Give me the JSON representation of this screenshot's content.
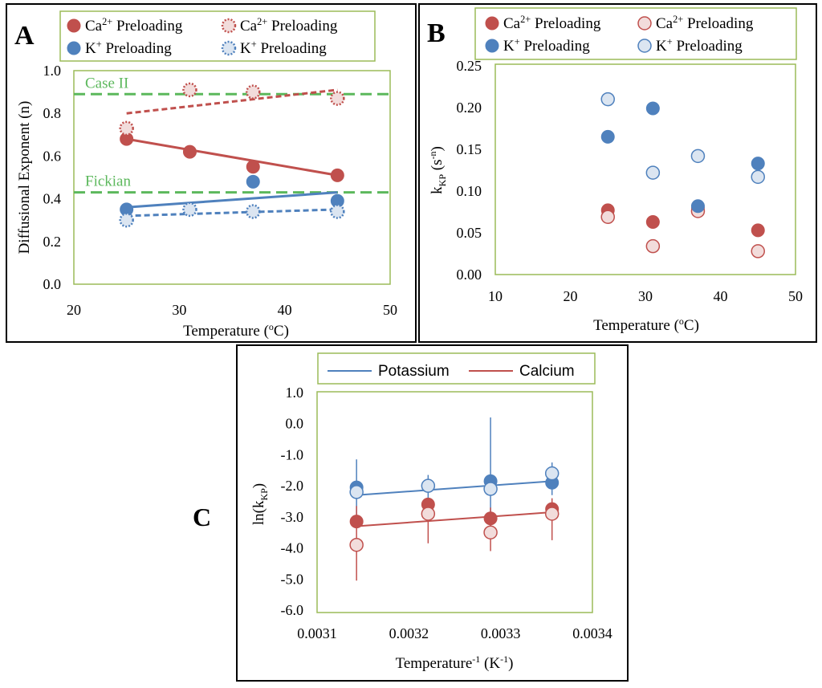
{
  "colors": {
    "calcium": "#c0504d",
    "calcium_light": "#f2dcdb",
    "potassium": "#4f81bd",
    "potassium_light": "#dbe5f1",
    "frame_green": "#9bbb59",
    "threshold_green": "#5cb85c"
  },
  "chart_data": [
    {
      "panel": "A",
      "type": "scatter",
      "xlabel": "Temperature (",
      "xlabel_sup": "o",
      "xlabel_end": "C)",
      "ylabel": "Diffusional Exponent (n)",
      "xlim": [
        20,
        50
      ],
      "ylim": [
        0.0,
        1.0
      ],
      "xticks": [
        "20",
        "30",
        "40",
        "50"
      ],
      "yticks": [
        "0.0",
        "0.2",
        "0.4",
        "0.6",
        "0.8",
        "1.0"
      ],
      "legend": [
        {
          "pre": "Ca",
          "sup": "2+",
          "post": " Preloading",
          "style": "solid"
        },
        {
          "pre": "Ca",
          "sup": "2+",
          "post": " Preloading",
          "style": "dotted"
        },
        {
          "pre": "K",
          "sup": "+",
          "post": " Preloading",
          "style": "solid"
        },
        {
          "pre": "K",
          "sup": "+",
          "post": " Preloading",
          "style": "dotted"
        }
      ],
      "thresholds": [
        {
          "label": "Case II",
          "value": 0.89
        },
        {
          "label": "Fickian",
          "value": 0.43
        }
      ],
      "series": [
        {
          "name": "Ca2+ Preloading (filled)",
          "ion": "calcium",
          "style": "solid",
          "x": [
            25,
            31,
            37,
            45
          ],
          "y": [
            0.68,
            0.62,
            0.55,
            0.51
          ],
          "fit": [
            [
              25,
              0.68
            ],
            [
              45,
              0.51
            ]
          ]
        },
        {
          "name": "Ca2+ Preloading (open)",
          "ion": "calcium",
          "style": "dotted",
          "x": [
            25,
            31,
            37,
            45
          ],
          "y": [
            0.73,
            0.91,
            0.9,
            0.87
          ],
          "fit": [
            [
              25,
              0.8
            ],
            [
              45,
              0.91
            ]
          ]
        },
        {
          "name": "K+ Preloading (filled)",
          "ion": "potassium",
          "style": "solid",
          "x": [
            25,
            37,
            45
          ],
          "y": [
            0.35,
            0.48,
            0.39
          ],
          "fit": [
            [
              25,
              0.36
            ],
            [
              45,
              0.43
            ]
          ]
        },
        {
          "name": "K+ Preloading (open)",
          "ion": "potassium",
          "style": "dotted",
          "x": [
            25,
            31,
            37,
            45
          ],
          "y": [
            0.3,
            0.35,
            0.34,
            0.34
          ],
          "fit": [
            [
              25,
              0.32
            ],
            [
              45,
              0.35
            ]
          ]
        }
      ]
    },
    {
      "panel": "B",
      "type": "scatter",
      "xlabel": "Temperature (",
      "xlabel_sup": "o",
      "xlabel_end": "C)",
      "ylabel": "k",
      "ylabel_sub": "KP",
      "ylabel_mid": " (s",
      "ylabel_sup": "-n",
      "ylabel_end": ")",
      "xlim": [
        10,
        50
      ],
      "ylim": [
        0.0,
        0.25
      ],
      "xticks": [
        "10",
        "20",
        "30",
        "40",
        "50"
      ],
      "yticks": [
        "0.00",
        "0.05",
        "0.10",
        "0.15",
        "0.20",
        "0.25"
      ],
      "legend": [
        {
          "pre": "Ca",
          "sup": "2+",
          "post": " Preloading",
          "style": "filled"
        },
        {
          "pre": "Ca",
          "sup": "2+",
          "post": " Preloading",
          "style": "open"
        },
        {
          "pre": "K",
          "sup": "+",
          "post": " Preloading",
          "style": "filled"
        },
        {
          "pre": "K",
          "sup": "+",
          "post": " Preloading",
          "style": "open"
        }
      ],
      "series": [
        {
          "name": "Ca2+ Preloading (filled)",
          "ion": "calcium",
          "style": "filled",
          "x": [
            25,
            31,
            37,
            45
          ],
          "y": [
            0.077,
            0.063,
            0.08,
            0.053
          ]
        },
        {
          "name": "Ca2+ Preloading (open)",
          "ion": "calcium",
          "style": "open",
          "x": [
            25,
            31,
            37,
            45
          ],
          "y": [
            0.069,
            0.034,
            0.076,
            0.028
          ]
        },
        {
          "name": "K+ Preloading (filled)",
          "ion": "potassium",
          "style": "filled",
          "x": [
            25,
            31,
            37,
            45
          ],
          "y": [
            0.165,
            0.199,
            0.082,
            0.133
          ]
        },
        {
          "name": "K+ Preloading (open)",
          "ion": "potassium",
          "style": "open",
          "x": [
            25,
            31,
            37,
            45
          ],
          "y": [
            0.21,
            0.122,
            0.142,
            0.117
          ]
        }
      ]
    },
    {
      "panel": "C",
      "type": "scatter",
      "xlabel": "Temperature",
      "xlabel_sup": "-1",
      "xlabel_mid": " (K",
      "xlabel_sup2": "-1",
      "xlabel_end": ")",
      "ylabel": "ln(k",
      "ylabel_sub": "KP",
      "ylabel_end": ")",
      "xlim": [
        0.0031,
        0.0034
      ],
      "ylim": [
        -6.0,
        1.0
      ],
      "xticks": [
        "0.0031",
        "0.0032",
        "0.0033",
        "0.0034"
      ],
      "yticks": [
        "-6.0",
        "-5.0",
        "-4.0",
        "-3.0",
        "-2.0",
        "-1.0",
        "0.0",
        "1.0"
      ],
      "legend": [
        {
          "label": "Potassium",
          "ion": "potassium"
        },
        {
          "label": "Calcium",
          "ion": "calcium"
        }
      ],
      "series": [
        {
          "name": "Potassium (filled)",
          "ion": "potassium",
          "style": "filled",
          "x": [
            0.003143,
            0.003221,
            0.003289,
            0.003356
          ],
          "y": [
            -2.05,
            -2.0,
            -1.85,
            -1.9
          ]
        },
        {
          "name": "Potassium (open)",
          "ion": "potassium",
          "style": "open",
          "x": [
            0.003143,
            0.003221,
            0.003289,
            0.003356
          ],
          "y": [
            -2.2,
            -2.0,
            -2.1,
            -1.6
          ]
        },
        {
          "name": "Calcium (filled)",
          "ion": "calcium",
          "style": "filled",
          "x": [
            0.003143,
            0.003221,
            0.003289,
            0.003356
          ],
          "y": [
            -3.15,
            -2.6,
            -3.05,
            -2.75
          ]
        },
        {
          "name": "Calcium (open)",
          "ion": "calcium",
          "style": "open",
          "x": [
            0.003143,
            0.003221,
            0.003289,
            0.003356
          ],
          "y": [
            -3.9,
            -2.9,
            -3.5,
            -2.9
          ]
        }
      ],
      "fits": [
        {
          "ion": "potassium",
          "points": [
            [
              0.003143,
              -2.3
            ],
            [
              0.003356,
              -1.85
            ]
          ]
        },
        {
          "ion": "calcium",
          "points": [
            [
              0.003143,
              -3.3
            ],
            [
              0.003356,
              -2.85
            ]
          ]
        }
      ],
      "error_bars": [
        {
          "ion": "potassium",
          "x": 0.003143,
          "low": -3.0,
          "high": -1.15
        },
        {
          "ion": "calcium",
          "x": 0.003143,
          "low": -5.05,
          "high": -2.65
        },
        {
          "ion": "potassium",
          "x": 0.003221,
          "low": -2.4,
          "high": -1.65
        },
        {
          "ion": "calcium",
          "x": 0.003221,
          "low": -3.85,
          "high": -2.4
        },
        {
          "ion": "potassium",
          "x": 0.003289,
          "low": -3.0,
          "high": 0.2
        },
        {
          "ion": "calcium",
          "x": 0.003289,
          "low": -4.1,
          "high": -2.7
        },
        {
          "ion": "potassium",
          "x": 0.003356,
          "low": -2.3,
          "high": -1.25
        },
        {
          "ion": "calcium",
          "x": 0.003356,
          "low": -3.75,
          "high": -2.4
        }
      ]
    }
  ]
}
